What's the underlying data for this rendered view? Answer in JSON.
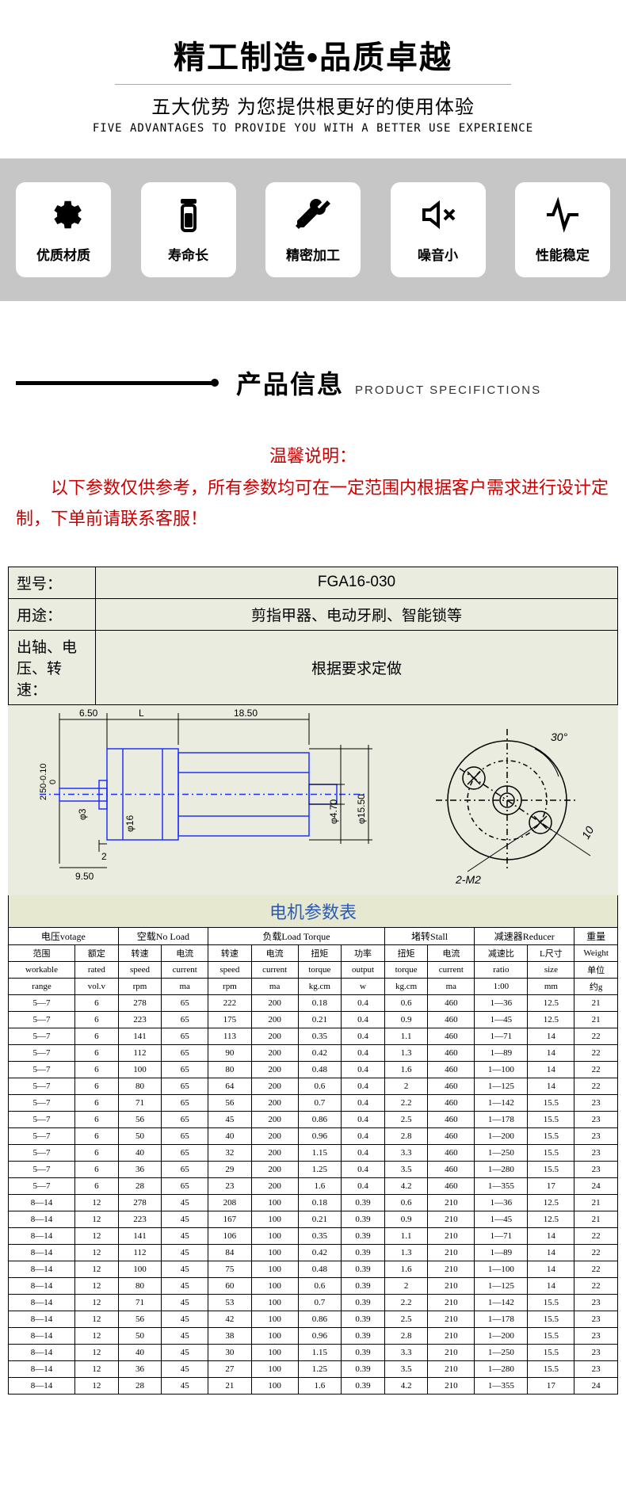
{
  "banner": {
    "title": "精工制造•品质卓越",
    "subtitle": "五大优势  为您提供根更好的使用体验",
    "subtitle_en": "FIVE ADVANTAGES TO PROVIDE YOU WITH A BETTER USE EXPERIENCE"
  },
  "cards": [
    {
      "icon": "gear",
      "label": "优质材质"
    },
    {
      "icon": "jar",
      "label": "寿命长"
    },
    {
      "icon": "tools",
      "label": "精密加工"
    },
    {
      "icon": "mute",
      "label": "噪音小"
    },
    {
      "icon": "pulse",
      "label": "性能稳定"
    }
  ],
  "section": {
    "zh": "产品信息",
    "en": "PRODUCT  SPECIFICTIONS"
  },
  "notice": {
    "title": "温馨说明：",
    "body": "以下参数仅供参考，所有参数均可在一定范围内根据客户需求进行设计定制，下单前请联系客服！"
  },
  "info": {
    "rows": [
      {
        "k": "型号：",
        "v": "FGA16-030"
      },
      {
        "k": "用途：",
        "v": "剪指甲器、电动牙刷、智能锁等"
      },
      {
        "k": "出轴、电压、转速：",
        "v": "根据要求定做"
      }
    ]
  },
  "drawing": {
    "dims": {
      "d1": "6.50",
      "d2": "L",
      "d3": "18.50",
      "h1": "2.50-0.10",
      "h1top": "0",
      "shaft": "φ3",
      "body": "φ16",
      "boss": "φ4.70",
      "case": "φ15.50",
      "w1": "2",
      "w2": "9.50",
      "angle": "30°",
      "holes": "2-M2",
      "pcd": "10"
    },
    "colors": {
      "outline": "#2030ff",
      "dim": "#000",
      "bg": "#eaece0"
    }
  },
  "param_title": "电机参数表",
  "param": {
    "groups": [
      "电压votage",
      "空载No Load",
      "负载Load  Torque",
      "堵转Stall",
      "减速器Reducer",
      "重量"
    ],
    "group_spans": [
      2,
      2,
      4,
      2,
      2,
      1
    ],
    "sub1": [
      "范围",
      "额定",
      "转速",
      "电流",
      "转速",
      "电流",
      "扭矩",
      "功率",
      "扭矩",
      "电流",
      "减速比",
      "L尺寸",
      "Weight"
    ],
    "sub2": [
      "workable",
      "rated",
      "speed",
      "current",
      "speed",
      "current",
      "torque",
      "output",
      "torque",
      "current",
      "ratio",
      "size",
      "单位"
    ],
    "sub3": [
      "range",
      "vol.v",
      "rpm",
      "ma",
      "rpm",
      "ma",
      "kg.cm",
      "w",
      "kg.cm",
      "ma",
      "1:00",
      "mm",
      "约g"
    ],
    "rows": [
      [
        "5—7",
        "6",
        "278",
        "65",
        "222",
        "200",
        "0.18",
        "0.4",
        "0.6",
        "460",
        "1—36",
        "12.5",
        "21"
      ],
      [
        "5—7",
        "6",
        "223",
        "65",
        "175",
        "200",
        "0.21",
        "0.4",
        "0.9",
        "460",
        "1—45",
        "12.5",
        "21"
      ],
      [
        "5—7",
        "6",
        "141",
        "65",
        "113",
        "200",
        "0.35",
        "0.4",
        "1.1",
        "460",
        "1—71",
        "14",
        "22"
      ],
      [
        "5—7",
        "6",
        "112",
        "65",
        "90",
        "200",
        "0.42",
        "0.4",
        "1.3",
        "460",
        "1—89",
        "14",
        "22"
      ],
      [
        "5—7",
        "6",
        "100",
        "65",
        "80",
        "200",
        "0.48",
        "0.4",
        "1.6",
        "460",
        "1—100",
        "14",
        "22"
      ],
      [
        "5—7",
        "6",
        "80",
        "65",
        "64",
        "200",
        "0.6",
        "0.4",
        "2",
        "460",
        "1—125",
        "14",
        "22"
      ],
      [
        "5—7",
        "6",
        "71",
        "65",
        "56",
        "200",
        "0.7",
        "0.4",
        "2.2",
        "460",
        "1—142",
        "15.5",
        "23"
      ],
      [
        "5—7",
        "6",
        "56",
        "65",
        "45",
        "200",
        "0.86",
        "0.4",
        "2.5",
        "460",
        "1—178",
        "15.5",
        "23"
      ],
      [
        "5—7",
        "6",
        "50",
        "65",
        "40",
        "200",
        "0.96",
        "0.4",
        "2.8",
        "460",
        "1—200",
        "15.5",
        "23"
      ],
      [
        "5—7",
        "6",
        "40",
        "65",
        "32",
        "200",
        "1.15",
        "0.4",
        "3.3",
        "460",
        "1—250",
        "15.5",
        "23"
      ],
      [
        "5—7",
        "6",
        "36",
        "65",
        "29",
        "200",
        "1.25",
        "0.4",
        "3.5",
        "460",
        "1—280",
        "15.5",
        "23"
      ],
      [
        "5—7",
        "6",
        "28",
        "65",
        "23",
        "200",
        "1.6",
        "0.4",
        "4.2",
        "460",
        "1—355",
        "17",
        "24"
      ],
      [
        "8—14",
        "12",
        "278",
        "45",
        "208",
        "100",
        "0.18",
        "0.39",
        "0.6",
        "210",
        "1—36",
        "12.5",
        "21"
      ],
      [
        "8—14",
        "12",
        "223",
        "45",
        "167",
        "100",
        "0.21",
        "0.39",
        "0.9",
        "210",
        "1—45",
        "12.5",
        "21"
      ],
      [
        "8—14",
        "12",
        "141",
        "45",
        "106",
        "100",
        "0.35",
        "0.39",
        "1.1",
        "210",
        "1—71",
        "14",
        "22"
      ],
      [
        "8—14",
        "12",
        "112",
        "45",
        "84",
        "100",
        "0.42",
        "0.39",
        "1.3",
        "210",
        "1—89",
        "14",
        "22"
      ],
      [
        "8—14",
        "12",
        "100",
        "45",
        "75",
        "100",
        "0.48",
        "0.39",
        "1.6",
        "210",
        "1—100",
        "14",
        "22"
      ],
      [
        "8—14",
        "12",
        "80",
        "45",
        "60",
        "100",
        "0.6",
        "0.39",
        "2",
        "210",
        "1—125",
        "14",
        "22"
      ],
      [
        "8—14",
        "12",
        "71",
        "45",
        "53",
        "100",
        "0.7",
        "0.39",
        "2.2",
        "210",
        "1—142",
        "15.5",
        "23"
      ],
      [
        "8—14",
        "12",
        "56",
        "45",
        "42",
        "100",
        "0.86",
        "0.39",
        "2.5",
        "210",
        "1—178",
        "15.5",
        "23"
      ],
      [
        "8—14",
        "12",
        "50",
        "45",
        "38",
        "100",
        "0.96",
        "0.39",
        "2.8",
        "210",
        "1—200",
        "15.5",
        "23"
      ],
      [
        "8—14",
        "12",
        "40",
        "45",
        "30",
        "100",
        "1.15",
        "0.39",
        "3.3",
        "210",
        "1—250",
        "15.5",
        "23"
      ],
      [
        "8—14",
        "12",
        "36",
        "45",
        "27",
        "100",
        "1.25",
        "0.39",
        "3.5",
        "210",
        "1—280",
        "15.5",
        "23"
      ],
      [
        "8—14",
        "12",
        "28",
        "45",
        "21",
        "100",
        "1.6",
        "0.39",
        "4.2",
        "210",
        "1—355",
        "17",
        "24"
      ]
    ],
    "col_widths_pct": [
      10,
      6.5,
      6.5,
      7,
      6.5,
      7,
      6.5,
      6.5,
      6.5,
      7,
      8,
      7,
      6.5
    ]
  }
}
